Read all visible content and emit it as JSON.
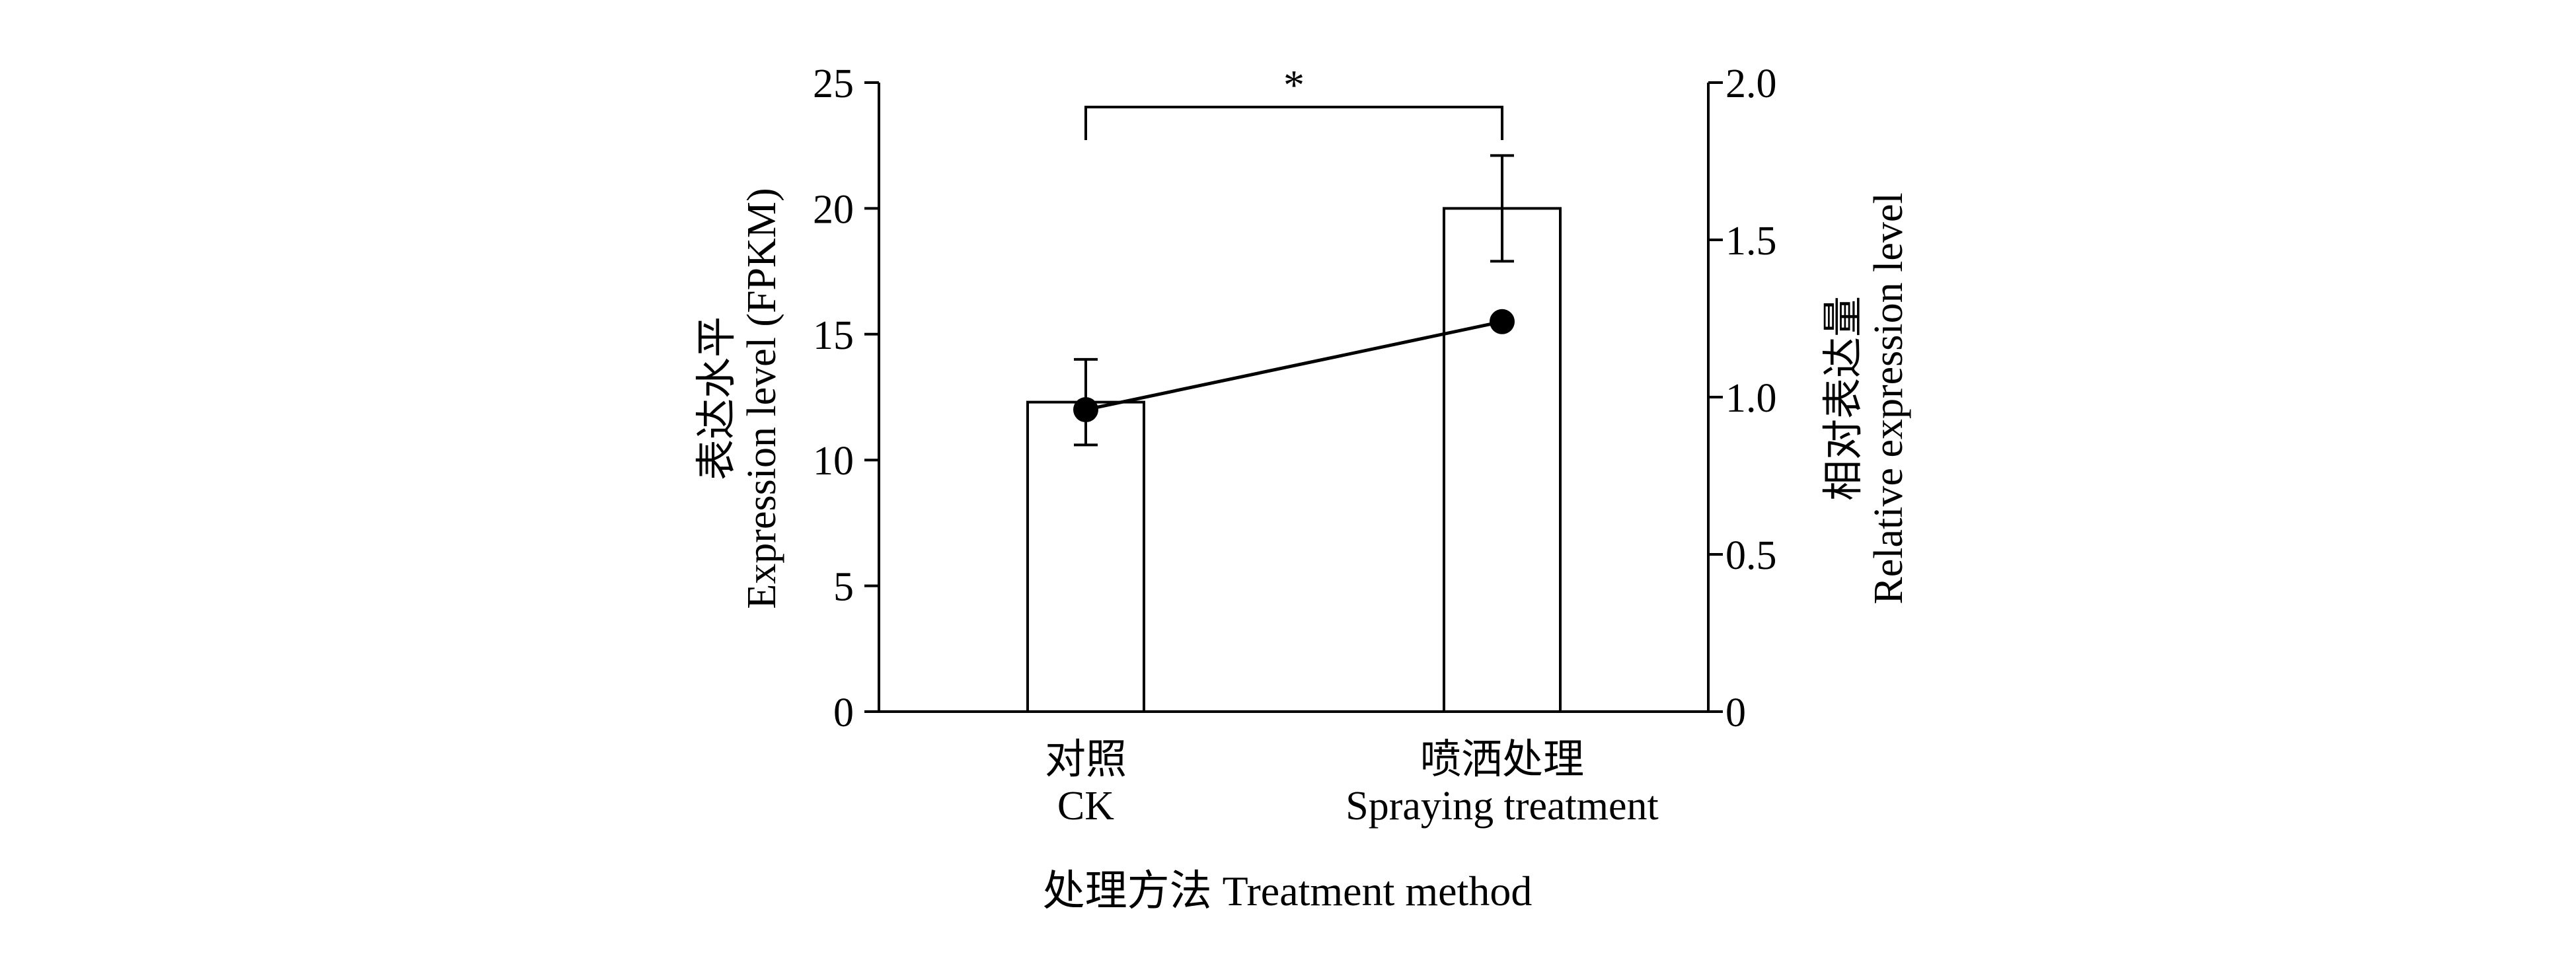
{
  "chart_data": {
    "type": "bar",
    "categories": [
      {
        "label_cn": "对照",
        "label_en": "CK"
      },
      {
        "label_cn": "喷洒处理",
        "label_en": "Spraying treatment"
      }
    ],
    "bars": {
      "axis": "left",
      "values": [
        12.3,
        20.0
      ],
      "error": [
        1.7,
        2.1
      ]
    },
    "line": {
      "axis": "right",
      "values": [
        0.96,
        1.24
      ]
    },
    "y_left": {
      "label_cn": "表达水平",
      "label_en": "Expression level (FPKM)",
      "ylim": [
        0,
        25
      ],
      "ticks": [
        "0",
        "5",
        "10",
        "15",
        "20",
        "25"
      ]
    },
    "y_right": {
      "label_cn": "相对表达量",
      "label_en": "Relative expression level",
      "ylim": [
        0,
        2.0
      ],
      "ticks": [
        "0",
        "0.5",
        "1.0",
        "1.5",
        "2.0"
      ]
    },
    "xlabel": "处理方法 Treatment method",
    "significance": {
      "between": [
        0,
        1
      ],
      "text": "*"
    },
    "grid": false,
    "legend": "none"
  }
}
